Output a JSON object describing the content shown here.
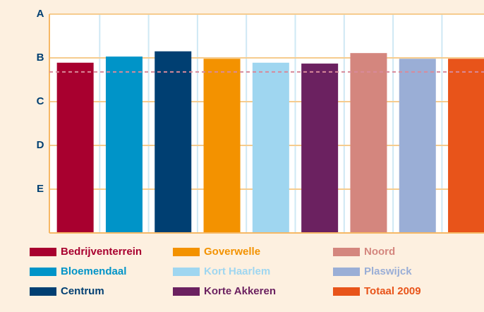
{
  "chart_data": {
    "type": "bar",
    "categories": [
      "Bedrijventerrein",
      "Bloemendaal",
      "Centrum",
      "Goverwelle",
      "Kort Haarlem",
      "Korte Akkeren",
      "Noord",
      "Plaswijck",
      "Totaal 2009"
    ],
    "values": [
      3.89,
      4.03,
      4.15,
      3.98,
      3.89,
      3.87,
      4.11,
      3.98,
      3.98
    ],
    "colors": [
      "#a8002f",
      "#0094c8",
      "#003f72",
      "#f39200",
      "#9fd6f0",
      "#6b2160",
      "#d4867e",
      "#9aaed6",
      "#e8541a"
    ],
    "ylim": [
      0,
      5
    ],
    "yticks": [
      {
        "value": 5,
        "label": "A"
      },
      {
        "value": 4,
        "label": "B"
      },
      {
        "value": 3,
        "label": "C"
      },
      {
        "value": 2,
        "label": "D"
      },
      {
        "value": 1,
        "label": "E"
      }
    ],
    "reference_line": 3.68,
    "grid": true
  }
}
